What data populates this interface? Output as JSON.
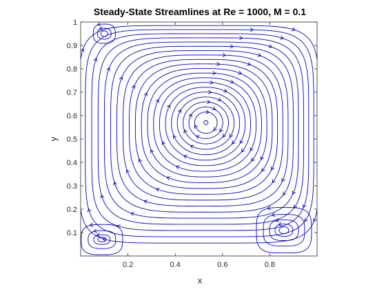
{
  "chart_data": {
    "type": "streamline",
    "title": "Steady-State Streamlines at Re = 1000, M = 0.1",
    "xlabel": "x",
    "ylabel": "y",
    "xlim": [
      0,
      1
    ],
    "ylim": [
      0,
      1
    ],
    "xticks": [
      "0.2",
      "0.4",
      "0.6",
      "0.8"
    ],
    "xtick_values": [
      0.2,
      0.4,
      0.6,
      0.8
    ],
    "yticks": [
      "0.1",
      "0.2",
      "0.3",
      "0.4",
      "0.5",
      "0.6",
      "0.7",
      "0.8",
      "0.9",
      "1"
    ],
    "ytick_values": [
      0.1,
      0.2,
      0.3,
      0.4,
      0.5,
      0.6,
      0.7,
      0.8,
      0.9,
      1.0
    ],
    "line_color": "#0000cc",
    "grid": false,
    "vortices": [
      {
        "role": "primary",
        "center": [
          0.53,
          0.57
        ],
        "rotation": "clockwise"
      },
      {
        "role": "bottom-left",
        "center": [
          0.09,
          0.07
        ],
        "rotation": "counterclockwise"
      },
      {
        "role": "bottom-right",
        "center": [
          0.86,
          0.11
        ],
        "rotation": "counterclockwise"
      },
      {
        "role": "top-left",
        "center": [
          0.1,
          0.95
        ],
        "rotation": "counterclockwise"
      }
    ]
  }
}
